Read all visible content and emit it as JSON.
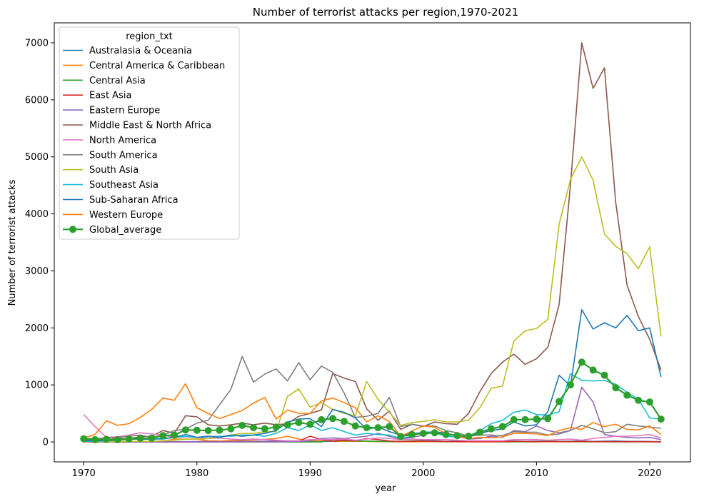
{
  "chart_data": {
    "type": "line",
    "title": "Number of terrorist attacks per region,1970-2021",
    "xlabel": "year",
    "ylabel": "Number of terrorist attacks",
    "xlim": [
      1967.4,
      2023.6
    ],
    "ylim": [
      -350,
      7350
    ],
    "xticks": [
      1970,
      1980,
      1990,
      2000,
      2010,
      2020
    ],
    "yticks": [
      0,
      1000,
      2000,
      3000,
      4000,
      5000,
      6000,
      7000
    ],
    "grid": false,
    "legend": {
      "title": "region_txt",
      "placement": "top-left"
    },
    "x": [
      1970,
      1971,
      1972,
      1973,
      1974,
      1975,
      1976,
      1977,
      1978,
      1979,
      1980,
      1981,
      1982,
      1983,
      1984,
      1985,
      1986,
      1987,
      1988,
      1989,
      1990,
      1991,
      1992,
      1993,
      1994,
      1995,
      1996,
      1997,
      1998,
      1999,
      2000,
      2001,
      2002,
      2003,
      2004,
      2005,
      2006,
      2007,
      2008,
      2009,
      2010,
      2011,
      2012,
      2013,
      2014,
      2015,
      2016,
      2017,
      2018,
      2019,
      2020,
      2021
    ],
    "series": [
      {
        "name": "Australasia & Oceania",
        "color": "#1f77b4",
        "marker": false,
        "values": [
          1,
          1,
          8,
          1,
          2,
          3,
          2,
          5,
          3,
          4,
          5,
          10,
          5,
          8,
          10,
          10,
          10,
          15,
          20,
          15,
          10,
          10,
          10,
          12,
          15,
          12,
          10,
          10,
          8,
          20,
          25,
          20,
          10,
          15,
          8,
          10,
          8,
          10,
          15,
          10,
          12,
          15,
          10,
          12,
          15,
          10,
          12,
          15,
          10,
          10,
          8,
          5
        ]
      },
      {
        "name": "Central America & Caribbean",
        "color": "#ff7f0e",
        "marker": false,
        "values": [
          7,
          5,
          5,
          5,
          5,
          10,
          10,
          10,
          50,
          50,
          50,
          20,
          15,
          25,
          30,
          35,
          45,
          60,
          100,
          50,
          20,
          20,
          15,
          10,
          10,
          10,
          5,
          5,
          2,
          2,
          3,
          3,
          2,
          2,
          2,
          2,
          2,
          2,
          2,
          2,
          2,
          3,
          3,
          3,
          3,
          3,
          3,
          3,
          3,
          3,
          3,
          3
        ]
      },
      {
        "name": "Central Asia",
        "color": "#2ca02c",
        "marker": false,
        "values": [
          0,
          0,
          0,
          0,
          0,
          0,
          0,
          0,
          0,
          0,
          0,
          0,
          0,
          0,
          0,
          0,
          0,
          0,
          0,
          0,
          0,
          0,
          40,
          20,
          15,
          15,
          10,
          5,
          8,
          20,
          15,
          10,
          5,
          5,
          5,
          5,
          5,
          3,
          3,
          3,
          3,
          15,
          10,
          5,
          3,
          3,
          3,
          3,
          2,
          3,
          3,
          3
        ]
      },
      {
        "name": "East Asia",
        "color": "#d62728",
        "marker": false,
        "values": [
          2,
          2,
          2,
          2,
          2,
          2,
          2,
          2,
          2,
          2,
          5,
          5,
          5,
          5,
          5,
          5,
          5,
          5,
          10,
          15,
          100,
          40,
          10,
          30,
          20,
          60,
          40,
          15,
          10,
          10,
          15,
          10,
          10,
          5,
          5,
          5,
          5,
          8,
          10,
          10,
          5,
          5,
          5,
          5,
          10,
          5,
          5,
          5,
          5,
          5,
          3,
          2
        ]
      },
      {
        "name": "Eastern Europe",
        "color": "#9467bd",
        "marker": false,
        "values": [
          1,
          1,
          1,
          1,
          1,
          1,
          1,
          1,
          1,
          1,
          1,
          1,
          1,
          1,
          1,
          1,
          1,
          2,
          5,
          10,
          20,
          60,
          70,
          60,
          80,
          100,
          150,
          100,
          50,
          80,
          120,
          180,
          150,
          100,
          50,
          60,
          100,
          80,
          200,
          180,
          280,
          200,
          160,
          200,
          960,
          700,
          130,
          100,
          80,
          70,
          80,
          40
        ]
      },
      {
        "name": "Middle East & North Africa",
        "color": "#8c564b",
        "marker": false,
        "values": [
          30,
          30,
          40,
          60,
          60,
          90,
          100,
          200,
          150,
          460,
          440,
          300,
          280,
          300,
          330,
          300,
          330,
          300,
          320,
          450,
          500,
          560,
          1200,
          1120,
          1060,
          580,
          380,
          540,
          220,
          310,
          270,
          350,
          320,
          310,
          500,
          880,
          1200,
          1400,
          1540,
          1360,
          1460,
          1660,
          2410,
          4500,
          7000,
          6200,
          6560,
          4200,
          2750,
          2200,
          1800,
          1260
        ]
      },
      {
        "name": "North America",
        "color": "#e377c2",
        "marker": false,
        "values": [
          480,
          270,
          80,
          90,
          120,
          160,
          140,
          120,
          80,
          90,
          80,
          60,
          70,
          50,
          40,
          50,
          40,
          30,
          20,
          20,
          40,
          40,
          40,
          50,
          30,
          50,
          70,
          60,
          40,
          50,
          40,
          40,
          40,
          30,
          20,
          20,
          20,
          20,
          40,
          40,
          40,
          30,
          40,
          50,
          30,
          60,
          80,
          100,
          100,
          110,
          130,
          70
        ]
      },
      {
        "name": "South America",
        "color": "#7f7f7f",
        "marker": false,
        "values": [
          60,
          60,
          70,
          80,
          100,
          120,
          80,
          120,
          200,
          220,
          330,
          380,
          650,
          920,
          1500,
          1050,
          1190,
          1280,
          1070,
          1390,
          1090,
          1330,
          1220,
          860,
          430,
          450,
          500,
          780,
          270,
          310,
          280,
          280,
          200,
          160,
          100,
          120,
          120,
          110,
          180,
          170,
          170,
          120,
          140,
          200,
          290,
          230,
          160,
          180,
          310,
          280,
          260,
          240
        ]
      },
      {
        "name": "South Asia",
        "color": "#bcbd22",
        "marker": false,
        "values": [
          5,
          5,
          5,
          5,
          10,
          10,
          10,
          20,
          30,
          50,
          50,
          60,
          90,
          120,
          150,
          150,
          180,
          180,
          800,
          930,
          610,
          690,
          570,
          500,
          460,
          1060,
          750,
          520,
          290,
          340,
          360,
          390,
          350,
          350,
          380,
          600,
          940,
          980,
          1770,
          1950,
          1990,
          2150,
          3820,
          4600,
          5000,
          4590,
          3650,
          3430,
          3300,
          3040,
          3420,
          1850
        ]
      },
      {
        "name": "Southeast Asia",
        "color": "#17becf",
        "marker": false,
        "values": [
          10,
          10,
          20,
          30,
          50,
          50,
          50,
          50,
          80,
          100,
          80,
          90,
          100,
          100,
          120,
          120,
          100,
          150,
          250,
          200,
          300,
          200,
          250,
          180,
          120,
          150,
          130,
          120,
          60,
          100,
          180,
          160,
          100,
          80,
          100,
          200,
          320,
          380,
          520,
          560,
          480,
          470,
          530,
          1200,
          1080,
          1070,
          1080,
          1010,
          870,
          750,
          420,
          400
        ]
      },
      {
        "name": "Sub-Saharan Africa",
        "color": "#1f77b4",
        "marker": false,
        "values": [
          20,
          20,
          30,
          30,
          50,
          50,
          50,
          60,
          80,
          130,
          80,
          100,
          80,
          120,
          100,
          120,
          150,
          200,
          350,
          400,
          410,
          270,
          570,
          520,
          420,
          220,
          260,
          180,
          120,
          150,
          160,
          180,
          150,
          110,
          100,
          150,
          200,
          230,
          350,
          280,
          300,
          530,
          1170,
          980,
          2320,
          1980,
          2090,
          2000,
          2220,
          1950,
          2000,
          1140
        ]
      },
      {
        "name": "Western Europe",
        "color": "#ff7f0e",
        "marker": false,
        "values": [
          70,
          130,
          370,
          290,
          320,
          430,
          570,
          770,
          730,
          1020,
          600,
          500,
          410,
          480,
          550,
          680,
          780,
          400,
          560,
          500,
          500,
          720,
          770,
          690,
          600,
          350,
          460,
          360,
          100,
          190,
          280,
          260,
          140,
          100,
          60,
          80,
          70,
          90,
          150,
          150,
          140,
          110,
          200,
          250,
          220,
          340,
          270,
          310,
          220,
          210,
          280,
          130
        ]
      },
      {
        "name": "Global_average",
        "color": "#2ca02c",
        "marker": true,
        "values": [
          56,
          40,
          45,
          38,
          52,
          63,
          65,
          110,
          120,
          210,
          205,
          200,
          205,
          230,
          290,
          250,
          230,
          260,
          300,
          340,
          310,
          390,
          410,
          360,
          280,
          250,
          250,
          270,
          95,
          130,
          150,
          160,
          130,
          110,
          100,
          170,
          230,
          270,
          390,
          390,
          400,
          410,
          710,
          1000,
          1400,
          1260,
          1170,
          950,
          820,
          730,
          700,
          400
        ]
      }
    ]
  }
}
